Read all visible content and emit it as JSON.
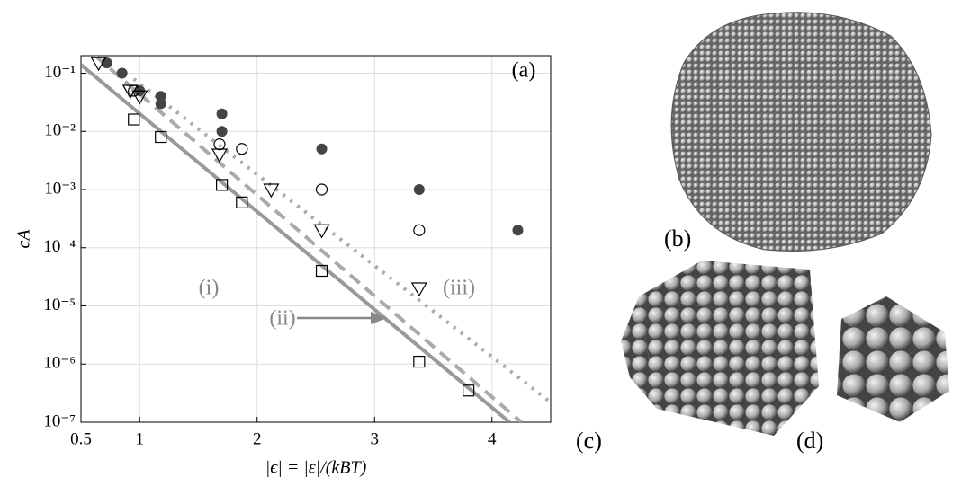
{
  "chart_data": {
    "type": "scatter",
    "x_label": "|ϵ| = |ε|/(kBT)",
    "y_label": "cA",
    "xlim": [
      0.5,
      4.5
    ],
    "xticks": [
      0.5,
      1,
      2,
      3,
      4
    ],
    "ylim": [
      1e-07,
      0.2
    ],
    "log_y": true,
    "grid": true,
    "yticks": [
      {
        "value": 1e-07,
        "label": "10⁻⁷"
      },
      {
        "value": 1e-06,
        "label": "10⁻⁶"
      },
      {
        "value": 1e-05,
        "label": "10⁻⁵"
      },
      {
        "value": 0.0001,
        "label": "10⁻⁴"
      },
      {
        "value": 0.001,
        "label": "10⁻³"
      },
      {
        "value": 0.01,
        "label": "10⁻²"
      },
      {
        "value": 0.1,
        "label": "10⁻¹"
      }
    ],
    "series": [
      {
        "kind": "line",
        "style": "solid",
        "color": "#999999",
        "x": [
          0.5,
          4.15
        ],
        "values": [
          0.14,
          1e-07
        ]
      },
      {
        "kind": "line",
        "style": "dashed",
        "color": "#aaaaaa",
        "x": [
          0.62,
          4.25
        ],
        "values": [
          0.2,
          1e-07
        ]
      },
      {
        "kind": "line",
        "style": "dotted",
        "color": "#aaaaaa",
        "x": [
          0.95,
          4.5
        ],
        "values": [
          0.08,
          2.2e-07
        ]
      },
      {
        "kind": "marker",
        "marker": "filled-circle",
        "color": "#444444",
        "x": [
          0.72,
          0.85,
          1.0,
          1.18,
          1.18,
          1.7,
          1.7,
          2.55,
          3.38,
          4.22
        ],
        "values": [
          0.15,
          0.1,
          0.05,
          0.04,
          0.03,
          0.02,
          0.01,
          0.005,
          0.001,
          0.0002
        ]
      },
      {
        "kind": "marker",
        "marker": "open-circle",
        "color": "#000000",
        "x": [
          0.95,
          1.68,
          1.87,
          2.55,
          3.38
        ],
        "values": [
          0.05,
          0.006,
          0.005,
          0.001,
          0.0002
        ]
      },
      {
        "kind": "marker",
        "marker": "triangle",
        "color": "#000000",
        "x": [
          0.65,
          0.92,
          1.0,
          1.68,
          2.12,
          2.55,
          3.38
        ],
        "values": [
          0.15,
          0.05,
          0.04,
          0.004,
          0.001,
          0.0002,
          2e-05
        ]
      },
      {
        "kind": "marker",
        "marker": "square",
        "color": "#000000",
        "x": [
          0.95,
          1.18,
          1.7,
          1.87,
          2.55,
          3.38,
          3.8
        ],
        "values": [
          0.016,
          0.008,
          0.0012,
          0.0006,
          4e-05,
          1.1e-06,
          3.5e-07
        ]
      }
    ],
    "annotations": [
      "(a)",
      "(i)",
      "(ii)",
      "(iii)"
    ]
  },
  "panels": {
    "b": "(b)",
    "c": "(c)",
    "d": "(d)"
  }
}
